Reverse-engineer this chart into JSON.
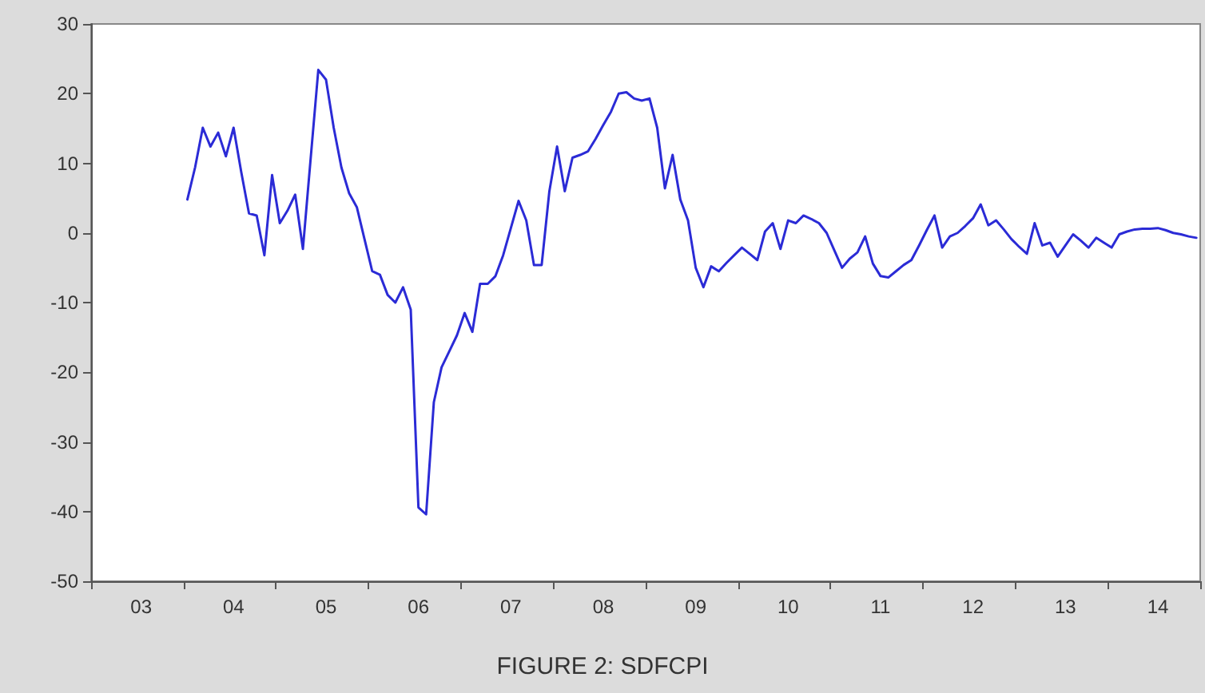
{
  "chart_data": {
    "type": "line",
    "title": "FIGURE 2: SDFCPI",
    "categories": [
      null,
      null,
      null,
      null,
      null,
      null,
      "03",
      null,
      null,
      null,
      null,
      null,
      null,
      null,
      null,
      null,
      null,
      null,
      "04",
      null,
      null,
      null,
      null,
      null,
      null,
      null,
      null,
      null,
      null,
      null,
      "05",
      null,
      null,
      null,
      null,
      null,
      null,
      null,
      null,
      null,
      null,
      null,
      "06",
      null,
      null,
      null,
      null,
      null,
      null,
      null,
      null,
      null,
      null,
      null,
      "07",
      null,
      null,
      null,
      null,
      null,
      null,
      null,
      null,
      null,
      null,
      null,
      "08",
      null,
      null,
      null,
      null,
      null,
      null,
      null,
      null,
      null,
      null,
      null,
      "09",
      null,
      null,
      null,
      null,
      null,
      null,
      null,
      null,
      null,
      null,
      null,
      "10",
      null,
      null,
      null,
      null,
      null,
      null,
      null,
      null,
      null,
      null,
      null,
      "11",
      null,
      null,
      null,
      null,
      null,
      null,
      null,
      null,
      null,
      null,
      null,
      "12",
      null,
      null,
      null,
      null,
      null,
      null,
      null,
      null,
      null,
      null,
      null,
      "13",
      null,
      null,
      null,
      null,
      null,
      null,
      null,
      null,
      null,
      null,
      null,
      "14",
      null,
      null,
      null,
      null,
      null
    ],
    "series": [
      {
        "color": "#2b2bd6",
        "values": [
          null,
          null,
          null,
          null,
          null,
          null,
          null,
          null,
          null,
          null,
          null,
          null,
          4.8,
          9.4,
          15.1,
          12.4,
          14.4,
          11,
          15.1,
          8.7,
          2.8,
          2.5,
          -3.2,
          8.3,
          1.4,
          3.2,
          5.5,
          -2.3,
          10.6,
          23.4,
          22,
          15.1,
          9.4,
          5.7,
          3.7,
          -0.9,
          -5.5,
          -6,
          -8.9,
          -10,
          -7.8,
          -11,
          -39.4,
          -40.4,
          -24.3,
          -19.3,
          -17,
          -14.7,
          -11.5,
          -14.2,
          -7.3,
          -7.3,
          -6.2,
          -3.2,
          0.7,
          4.6,
          1.8,
          -4.6,
          -4.6,
          6,
          12.4,
          6,
          10.8,
          11.2,
          11.7,
          13.5,
          15.5,
          17.4,
          20,
          20.2,
          19.3,
          19,
          19.3,
          15.1,
          6.4,
          11.2,
          4.8,
          1.8,
          -5,
          -7.8,
          -4.8,
          -5.5,
          -4.3,
          -3.2,
          -2.1,
          -3,
          -3.9,
          0.2,
          1.4,
          -2.3,
          1.8,
          1.4,
          2.5,
          2,
          1.4,
          0,
          -2.5,
          -5,
          -3.7,
          -2.8,
          -0.5,
          -4.4,
          -6.2,
          -6.4,
          -5.5,
          -4.6,
          -3.9,
          -1.8,
          0.4,
          2.5,
          -2.1,
          -0.5,
          0,
          1,
          2.1,
          4.1,
          1.1,
          1.8,
          0.5,
          -0.9,
          -2,
          -3,
          1.4,
          -1.8,
          -1.4,
          -3.4,
          -1.8,
          -0.2,
          -1.1,
          -2.1,
          -0.7,
          -1.4,
          -2.1,
          -0.2,
          0.2,
          0.5,
          0.6,
          0.6,
          0.7,
          0.4,
          0,
          -0.2,
          -0.5,
          -0.7
        ]
      }
    ],
    "ylim": [
      -50,
      30
    ],
    "yticks": [
      -50,
      -40,
      -30,
      -20,
      -10,
      0,
      10,
      20,
      30
    ],
    "grid": false,
    "marker": "none",
    "line_style": "solid"
  }
}
